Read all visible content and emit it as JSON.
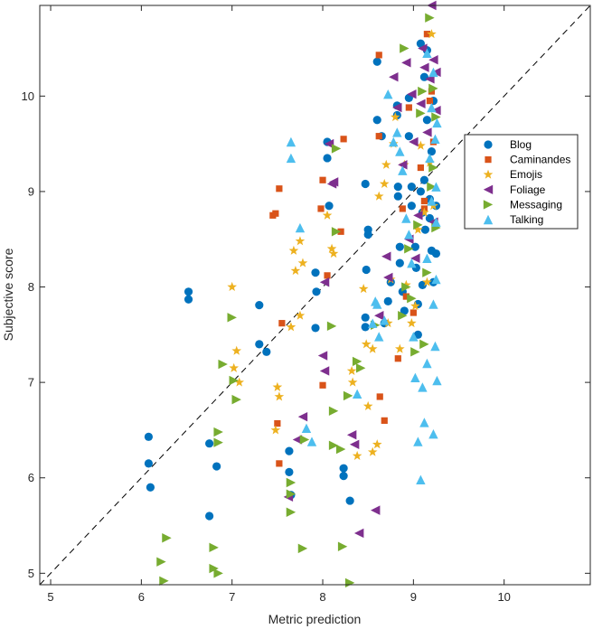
{
  "chart_data": {
    "type": "scatter",
    "xlabel": "Metric prediction",
    "ylabel": "Subjective score",
    "xlim": [
      4.88,
      10.95
    ],
    "ylim": [
      4.88,
      10.95
    ],
    "xticks": [
      5,
      6,
      7,
      8,
      9,
      10
    ],
    "yticks": [
      5,
      6,
      7,
      8,
      9,
      10
    ],
    "grid": false,
    "legend_position": "right-middle",
    "reference_line": {
      "style": "dashed",
      "from": [
        4.88,
        4.88
      ],
      "to": [
        10.95,
        10.95
      ]
    },
    "series": [
      {
        "name": "Blog",
        "marker": "circle",
        "color": "#0072BD",
        "points": [
          [
            6.08,
            6.43
          ],
          [
            6.08,
            6.15
          ],
          [
            6.1,
            5.9
          ],
          [
            6.52,
            7.95
          ],
          [
            6.52,
            7.87
          ],
          [
            6.75,
            6.36
          ],
          [
            6.75,
            5.6
          ],
          [
            6.83,
            6.12
          ],
          [
            7.3,
            7.81
          ],
          [
            7.3,
            7.4
          ],
          [
            7.38,
            7.32
          ],
          [
            7.63,
            6.28
          ],
          [
            7.63,
            6.06
          ],
          [
            7.65,
            5.82
          ],
          [
            7.92,
            7.57
          ],
          [
            7.92,
            8.15
          ],
          [
            7.93,
            7.95
          ],
          [
            8.05,
            9.52
          ],
          [
            8.05,
            9.35
          ],
          [
            8.07,
            8.85
          ],
          [
            8.23,
            6.1
          ],
          [
            8.23,
            6.02
          ],
          [
            8.3,
            5.76
          ],
          [
            8.47,
            9.08
          ],
          [
            8.5,
            8.6
          ],
          [
            8.5,
            8.55
          ],
          [
            8.48,
            8.18
          ],
          [
            8.47,
            7.68
          ],
          [
            8.47,
            7.58
          ],
          [
            8.6,
            10.36
          ],
          [
            8.6,
            9.75
          ],
          [
            8.65,
            9.58
          ],
          [
            8.68,
            7.62
          ],
          [
            8.72,
            7.85
          ],
          [
            8.75,
            8.05
          ],
          [
            8.82,
            9.9
          ],
          [
            8.82,
            9.8
          ],
          [
            8.83,
            9.05
          ],
          [
            8.83,
            8.95
          ],
          [
            8.85,
            8.42
          ],
          [
            8.85,
            8.25
          ],
          [
            8.88,
            7.95
          ],
          [
            8.9,
            7.75
          ],
          [
            8.95,
            9.98
          ],
          [
            8.95,
            9.58
          ],
          [
            8.98,
            9.05
          ],
          [
            8.98,
            8.85
          ],
          [
            9.02,
            8.42
          ],
          [
            9.03,
            8.2
          ],
          [
            9.05,
            7.82
          ],
          [
            9.05,
            7.5
          ],
          [
            9.08,
            10.55
          ],
          [
            9.08,
            9.0
          ],
          [
            9.1,
            8.78
          ],
          [
            9.1,
            8.02
          ],
          [
            9.12,
            10.2
          ],
          [
            9.12,
            9.12
          ],
          [
            9.13,
            8.6
          ],
          [
            9.15,
            10.48
          ],
          [
            9.15,
            9.75
          ],
          [
            9.18,
            8.92
          ],
          [
            9.18,
            8.72
          ],
          [
            9.2,
            9.42
          ],
          [
            9.2,
            8.38
          ],
          [
            9.22,
            8.05
          ],
          [
            9.22,
            9.95
          ],
          [
            9.25,
            8.85
          ],
          [
            9.25,
            8.35
          ]
        ]
      },
      {
        "name": "Caminandes",
        "marker": "square",
        "color": "#D95319",
        "points": [
          [
            7.45,
            8.75
          ],
          [
            7.48,
            8.77
          ],
          [
            7.5,
            6.57
          ],
          [
            7.52,
            6.15
          ],
          [
            7.52,
            9.03
          ],
          [
            7.55,
            7.62
          ],
          [
            7.98,
            8.82
          ],
          [
            8.0,
            9.12
          ],
          [
            8.0,
            6.97
          ],
          [
            8.05,
            8.12
          ],
          [
            8.2,
            8.58
          ],
          [
            8.23,
            9.55
          ],
          [
            8.62,
            10.43
          ],
          [
            8.62,
            9.58
          ],
          [
            8.63,
            6.85
          ],
          [
            8.68,
            6.6
          ],
          [
            8.83,
            7.25
          ],
          [
            8.88,
            8.82
          ],
          [
            8.92,
            7.9
          ],
          [
            8.95,
            9.88
          ],
          [
            9.0,
            7.73
          ],
          [
            9.08,
            9.25
          ],
          [
            9.12,
            8.9
          ],
          [
            9.12,
            8.82
          ],
          [
            9.15,
            10.65
          ],
          [
            9.18,
            9.95
          ],
          [
            9.2,
            10.05
          ],
          [
            9.22,
            9.52
          ]
        ]
      },
      {
        "name": "Emojis",
        "marker": "star",
        "color": "#EDB120",
        "points": [
          [
            7.0,
            8.0
          ],
          [
            7.02,
            7.15
          ],
          [
            7.05,
            7.33
          ],
          [
            7.08,
            7.0
          ],
          [
            7.48,
            6.5
          ],
          [
            7.5,
            6.95
          ],
          [
            7.52,
            6.85
          ],
          [
            7.65,
            7.58
          ],
          [
            7.68,
            8.38
          ],
          [
            7.7,
            8.17
          ],
          [
            7.75,
            8.48
          ],
          [
            7.75,
            7.7
          ],
          [
            7.78,
            8.25
          ],
          [
            8.05,
            8.75
          ],
          [
            8.12,
            8.35
          ],
          [
            8.1,
            8.4
          ],
          [
            8.32,
            7.12
          ],
          [
            8.33,
            7.0
          ],
          [
            8.38,
            6.23
          ],
          [
            8.45,
            7.98
          ],
          [
            8.48,
            7.4
          ],
          [
            8.5,
            6.75
          ],
          [
            8.55,
            7.35
          ],
          [
            8.55,
            6.27
          ],
          [
            8.6,
            6.35
          ],
          [
            8.62,
            8.95
          ],
          [
            8.68,
            9.08
          ],
          [
            8.7,
            9.28
          ],
          [
            8.72,
            7.62
          ],
          [
            8.75,
            8.08
          ],
          [
            8.78,
            9.5
          ],
          [
            8.8,
            9.78
          ],
          [
            8.85,
            7.35
          ],
          [
            8.9,
            9.28
          ],
          [
            8.92,
            8.02
          ],
          [
            8.98,
            7.62
          ],
          [
            9.02,
            7.8
          ],
          [
            9.05,
            8.6
          ],
          [
            9.08,
            9.48
          ],
          [
            9.12,
            8.78
          ],
          [
            9.15,
            8.05
          ],
          [
            9.18,
            9.3
          ],
          [
            9.2,
            10.65
          ],
          [
            9.22,
            8.85
          ]
        ]
      },
      {
        "name": "Foliage",
        "marker": "triangle-left",
        "color": "#7E2F8E",
        "points": [
          [
            7.62,
            5.8
          ],
          [
            7.72,
            6.4
          ],
          [
            7.78,
            6.64
          ],
          [
            8.0,
            7.28
          ],
          [
            8.02,
            7.12
          ],
          [
            8.02,
            8.05
          ],
          [
            8.07,
            9.5
          ],
          [
            8.1,
            9.08
          ],
          [
            8.12,
            9.1
          ],
          [
            8.32,
            6.45
          ],
          [
            8.35,
            6.35
          ],
          [
            8.4,
            5.42
          ],
          [
            8.58,
            5.66
          ],
          [
            8.62,
            7.7
          ],
          [
            8.7,
            8.32
          ],
          [
            8.72,
            8.1
          ],
          [
            8.78,
            10.2
          ],
          [
            8.82,
            9.88
          ],
          [
            8.88,
            9.28
          ],
          [
            8.92,
            10.35
          ],
          [
            8.95,
            8.5
          ],
          [
            8.98,
            10.02
          ],
          [
            9.0,
            9.52
          ],
          [
            9.02,
            8.3
          ],
          [
            9.05,
            8.75
          ],
          [
            9.08,
            9.92
          ],
          [
            9.1,
            10.5
          ],
          [
            9.12,
            10.3
          ],
          [
            9.15,
            9.62
          ],
          [
            9.18,
            10.18
          ],
          [
            9.2,
            10.95
          ],
          [
            9.22,
            10.38
          ],
          [
            9.22,
            8.68
          ],
          [
            9.25,
            10.25
          ],
          [
            9.25,
            9.85
          ]
        ]
      },
      {
        "name": "Messaging",
        "marker": "triangle-right",
        "color": "#77AC30",
        "points": [
          [
            6.22,
            5.12
          ],
          [
            6.25,
            4.92
          ],
          [
            6.28,
            5.37
          ],
          [
            6.8,
            5.27
          ],
          [
            6.8,
            5.05
          ],
          [
            6.85,
            5.0
          ],
          [
            6.85,
            6.48
          ],
          [
            6.85,
            6.37
          ],
          [
            6.9,
            7.19
          ],
          [
            7.0,
            7.68
          ],
          [
            7.02,
            7.02
          ],
          [
            7.05,
            6.82
          ],
          [
            7.65,
            5.95
          ],
          [
            7.65,
            5.83
          ],
          [
            7.65,
            5.64
          ],
          [
            7.78,
            5.26
          ],
          [
            7.8,
            6.4
          ],
          [
            8.1,
            7.59
          ],
          [
            8.12,
            6.7
          ],
          [
            8.12,
            6.34
          ],
          [
            8.15,
            8.58
          ],
          [
            8.15,
            9.45
          ],
          [
            8.2,
            6.3
          ],
          [
            8.22,
            5.28
          ],
          [
            8.28,
            6.86
          ],
          [
            8.3,
            4.9
          ],
          [
            8.38,
            7.22
          ],
          [
            8.42,
            7.15
          ],
          [
            8.58,
            7.6
          ],
          [
            8.88,
            7.7
          ],
          [
            8.9,
            10.5
          ],
          [
            8.92,
            8.0
          ],
          [
            8.95,
            8.4
          ],
          [
            8.98,
            7.88
          ],
          [
            9.02,
            7.32
          ],
          [
            9.05,
            8.65
          ],
          [
            9.08,
            9.82
          ],
          [
            9.1,
            10.05
          ],
          [
            9.12,
            7.4
          ],
          [
            9.15,
            8.15
          ],
          [
            9.18,
            10.82
          ],
          [
            9.2,
            9.05
          ],
          [
            9.22,
            10.08
          ],
          [
            9.22,
            9.25
          ],
          [
            9.25,
            8.62
          ],
          [
            9.25,
            9.78
          ]
        ]
      },
      {
        "name": "Talking",
        "marker": "triangle-up",
        "color": "#4DBEEE",
        "points": [
          [
            7.65,
            9.52
          ],
          [
            7.65,
            9.35
          ],
          [
            7.75,
            8.62
          ],
          [
            7.82,
            6.52
          ],
          [
            7.88,
            6.38
          ],
          [
            8.38,
            6.88
          ],
          [
            8.55,
            7.62
          ],
          [
            8.58,
            7.85
          ],
          [
            8.6,
            7.82
          ],
          [
            8.62,
            7.48
          ],
          [
            8.68,
            7.65
          ],
          [
            8.72,
            10.02
          ],
          [
            8.78,
            9.52
          ],
          [
            8.82,
            9.62
          ],
          [
            8.85,
            9.42
          ],
          [
            8.88,
            9.22
          ],
          [
            8.92,
            8.72
          ],
          [
            8.95,
            8.55
          ],
          [
            8.98,
            8.25
          ],
          [
            9.0,
            7.48
          ],
          [
            9.02,
            7.05
          ],
          [
            9.05,
            6.38
          ],
          [
            9.08,
            5.98
          ],
          [
            9.1,
            6.95
          ],
          [
            9.12,
            6.58
          ],
          [
            9.15,
            7.2
          ],
          [
            9.15,
            10.45
          ],
          [
            9.15,
            8.3
          ],
          [
            9.18,
            9.35
          ],
          [
            9.2,
            9.88
          ],
          [
            9.2,
            8.9
          ],
          [
            9.22,
            10.25
          ],
          [
            9.22,
            7.82
          ],
          [
            9.22,
            6.46
          ],
          [
            9.24,
            9.55
          ],
          [
            9.24,
            7.38
          ],
          [
            9.25,
            8.08
          ],
          [
            9.25,
            8.68
          ],
          [
            9.25,
            9.05
          ],
          [
            9.26,
            9.72
          ],
          [
            9.26,
            7.02
          ]
        ]
      }
    ]
  }
}
